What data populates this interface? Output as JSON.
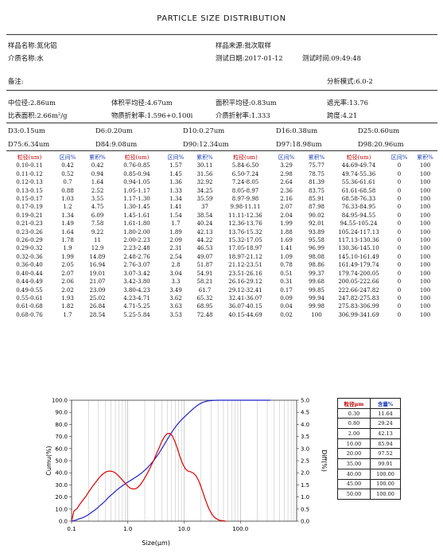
{
  "title": "PARTICLE SIZE DISTRIBUTION",
  "header": {
    "sample_name": "样品名称:氮化铝",
    "sample_source": "样品来源:批次取样",
    "medium": "介质名称:水",
    "test_date": "测试日期:2017-01-12",
    "test_time": "测试时间:09:49:48",
    "remark": "备注:",
    "analysis_mode": "分析模式:6.0-2"
  },
  "summary": {
    "median": "中位径:2.86um",
    "vol_mean": "体积平均径:4.67um",
    "area_mean": "面积平均径:0.83um",
    "obscuration": "遮光率:13.76",
    "spec_area": "比表面积:2.66m²/g",
    "refr": "物质折射率:1.596+0.100i",
    "medium_refr": "介质折射率:1.333",
    "span": "跨度:4.21"
  },
  "dvalues": {
    "d3": "D3:0.15um",
    "d6": "D6:0.20um",
    "d10": "D10:0.27um",
    "d16": "D16:0.38um",
    "d25": "D25:0.60um",
    "d75": "D75:6.34um",
    "d84": "D84:9.08um",
    "d90": "D90:12.34um",
    "d97": "D97:18.98um",
    "d98": "D98:20.96um"
  },
  "table": {
    "headers": [
      "粒径(um)",
      "区间%",
      "累积%",
      "粒径(um)",
      "区间%",
      "累积%",
      "粒径(um)",
      "区间%",
      "累积%",
      "粒径(um)",
      "区间%",
      "累积%"
    ],
    "rows": [
      [
        "0.10-0.11",
        "0.42",
        "0.42",
        "0.76-0.85",
        "1.57",
        "30.11",
        "5.84-6.50",
        "3.29",
        "75.77",
        "44.69-49.74",
        "0",
        "100"
      ],
      [
        "0.11-0.12",
        "0.52",
        "0.94",
        "0.85-0.94",
        "1.45",
        "31.56",
        "6.50-7.24",
        "2.98",
        "78.75",
        "49.74-55.36",
        "0",
        "100"
      ],
      [
        "0.12-0.13",
        "0.7",
        "1.64",
        "0.94-1.05",
        "1.36",
        "32.92",
        "7.24-8.05",
        "2.64",
        "81.39",
        "55.36-61.61",
        "0",
        "100"
      ],
      [
        "0.13-0.15",
        "0.88",
        "2.52",
        "1.05-1.17",
        "1.33",
        "34.25",
        "8.05-8.97",
        "2.36",
        "83.75",
        "61.61-68.58",
        "0",
        "100"
      ],
      [
        "0.15-0.17",
        "1.03",
        "3.55",
        "1.17-1.30",
        "1.34",
        "35.59",
        "8.97-9.98",
        "2.16",
        "85.91",
        "68.58-76.33",
        "0",
        "100"
      ],
      [
        "0.17-0.19",
        "1.2",
        "4.75",
        "1.30-1.45",
        "1.41",
        "37",
        "9.98-11.11",
        "2.07",
        "87.98",
        "76.33-84.95",
        "0",
        "100"
      ],
      [
        "0.19-0.21",
        "1.34",
        "6.09",
        "1.45-1.61",
        "1.54",
        "38.54",
        "11.11-12.36",
        "2.04",
        "90.02",
        "84.95-94.55",
        "0",
        "100"
      ],
      [
        "0.21-0.23",
        "1.49",
        "7.58",
        "1.61-1.80",
        "1.7",
        "40.24",
        "12.36-13.76",
        "1.99",
        "92.01",
        "94.55-105.24",
        "0",
        "100"
      ],
      [
        "0.23-0.26",
        "1.64",
        "9.22",
        "1.80-2.00",
        "1.89",
        "42.13",
        "13.76-15.32",
        "1.88",
        "93.89",
        "105.24-117.13",
        "0",
        "100"
      ],
      [
        "0.26-0.29",
        "1.78",
        "11",
        "2.00-2.23",
        "2.09",
        "44.22",
        "15.32-17.05",
        "1.69",
        "95.58",
        "117.13-130.36",
        "0",
        "100"
      ],
      [
        "0.29-0.32",
        "1.9",
        "12.9",
        "2.23-2.48",
        "2.31",
        "46.53",
        "17.05-18.97",
        "1.41",
        "96.99",
        "130.36-145.10",
        "0",
        "100"
      ],
      [
        "0.32-0.36",
        "1.99",
        "14.89",
        "2.48-2.76",
        "2.54",
        "49.07",
        "18.97-21.12",
        "1.09",
        "98.08",
        "145.10-161.49",
        "0",
        "100"
      ],
      [
        "0.36-0.40",
        "2.05",
        "16.94",
        "2.76-3.07",
        "2.8",
        "51.87",
        "21.12-23.51",
        "0.78",
        "98.86",
        "161.49-179.74",
        "0",
        "100"
      ],
      [
        "0.40-0.44",
        "2.07",
        "19.01",
        "3.07-3.42",
        "3.04",
        "54.91",
        "23.51-26.16",
        "0.51",
        "99.37",
        "179.74-200.05",
        "0",
        "100"
      ],
      [
        "0.44-0.49",
        "2.06",
        "21.07",
        "3.42-3.80",
        "3.3",
        "58.21",
        "26.16-29.12",
        "0.31",
        "99.68",
        "200.05-222.66",
        "0",
        "100"
      ],
      [
        "0.49-0.55",
        "2.02",
        "23.09",
        "3.80-4.23",
        "3.49",
        "61.7",
        "29.12-32.41",
        "0.17",
        "99.85",
        "222.66-247.82",
        "0",
        "100"
      ],
      [
        "0.55-0.61",
        "1.93",
        "25.02",
        "4.23-4.71",
        "3.62",
        "65.32",
        "32.41-36.07",
        "0.09",
        "99.94",
        "247.82-275.83",
        "0",
        "100"
      ],
      [
        "0.61-0.68",
        "1.82",
        "26.84",
        "4.71-5.25",
        "3.63",
        "68.95",
        "36.07-40.15",
        "0.04",
        "99.98",
        "275.83-306.99",
        "0",
        "100"
      ],
      [
        "0.68-0.76",
        "1.7",
        "28.54",
        "5.25-5.84",
        "3.53",
        "72.48",
        "40.15-44.69",
        "0.02",
        "100",
        "306.99-341.69",
        "0",
        "100"
      ]
    ]
  },
  "legend_table": {
    "headers": [
      "粒径μm",
      "含量%"
    ],
    "rows": [
      [
        "0.30",
        "11.64"
      ],
      [
        "0.80",
        "29.24"
      ],
      [
        "2.00",
        "42.13"
      ],
      [
        "10.00",
        "85.94"
      ],
      [
        "20.00",
        "97.52"
      ],
      [
        "35.00",
        "99.91"
      ],
      [
        "40.00",
        "100.00"
      ],
      [
        "45.00",
        "100.00"
      ],
      [
        "50.00",
        "100.00"
      ]
    ]
  },
  "chart_data": {
    "type": "line",
    "xlabel": "Size(μm)",
    "ylabel": "Cumu(%)",
    "ylabel_right": "Diff(%)",
    "xscale": "log",
    "xlim": [
      0.1,
      1000
    ],
    "ylim": [
      0,
      100
    ],
    "ylim_right": [
      0,
      5
    ],
    "x_ticks": [
      "0.1",
      "1.0",
      "10.0",
      "100.0"
    ],
    "y_ticks": [
      "0.0",
      "10.0",
      "20.0",
      "30.0",
      "40.0",
      "50.0",
      "60.0",
      "70.0",
      "80.0",
      "90.0",
      "100.0"
    ],
    "y_ticks_right": [
      "0.0",
      "0.5",
      "1.0",
      "1.5",
      "2.0",
      "2.5",
      "3.0",
      "3.5",
      "4.0",
      "4.5",
      "5.0"
    ],
    "grid": true,
    "colors": {
      "cumu": "#2222cc",
      "diff": "#dd0000"
    },
    "series": [
      {
        "axis": "left",
        "x": [
          0.1,
          0.11,
          0.12,
          0.13,
          0.15,
          0.17,
          0.19,
          0.21,
          0.23,
          0.26,
          0.29,
          0.32,
          0.36,
          0.4,
          0.44,
          0.49,
          0.55,
          0.61,
          0.68,
          0.76,
          0.85,
          0.94,
          1.05,
          1.17,
          1.3,
          1.45,
          1.61,
          1.8,
          2.0,
          2.23,
          2.48,
          2.76,
          3.07,
          3.42,
          3.8,
          4.23,
          4.71,
          5.25,
          5.84,
          6.5,
          7.24,
          8.05,
          8.97,
          9.98,
          11.11,
          12.36,
          13.76,
          15.32,
          17.05,
          18.97,
          21.12,
          23.51,
          26.16,
          29.12,
          32.41,
          36.07,
          40.15,
          44.69,
          49.74,
          100,
          200,
          341.69
        ],
        "y": [
          0,
          0.42,
          0.94,
          1.64,
          2.52,
          3.55,
          4.75,
          6.09,
          7.58,
          9.22,
          11,
          12.9,
          14.89,
          16.94,
          19.01,
          21.07,
          23.09,
          25.02,
          26.84,
          28.54,
          30.11,
          31.56,
          32.92,
          34.25,
          35.59,
          37,
          38.54,
          40.24,
          42.13,
          44.22,
          46.53,
          49.07,
          51.87,
          54.91,
          58.21,
          61.7,
          65.32,
          68.95,
          72.48,
          75.77,
          78.75,
          81.39,
          83.75,
          85.91,
          87.98,
          90.02,
          92.01,
          93.89,
          95.58,
          96.99,
          98.08,
          98.86,
          99.37,
          99.68,
          99.85,
          99.94,
          99.98,
          100,
          100,
          100,
          100,
          100
        ]
      },
      {
        "axis": "right",
        "x": [
          0.1,
          0.11,
          0.125,
          0.14,
          0.16,
          0.18,
          0.2,
          0.22,
          0.245,
          0.275,
          0.305,
          0.34,
          0.38,
          0.42,
          0.465,
          0.52,
          0.58,
          0.645,
          0.72,
          0.8,
          0.895,
          0.995,
          1.11,
          1.235,
          1.375,
          1.53,
          1.705,
          1.9,
          2.115,
          2.355,
          2.62,
          2.915,
          3.245,
          3.61,
          4.015,
          4.47,
          4.98,
          5.545,
          6.17,
          6.87,
          7.645,
          8.51,
          9.475,
          10.545,
          11.735,
          13.06,
          14.54,
          16.185,
          18.01,
          20.045,
          22.315,
          24.835,
          27.64,
          30.765,
          34.24,
          38.11,
          42.42,
          47.2,
          55
        ],
        "y": [
          0,
          0.42,
          0.52,
          0.7,
          0.88,
          1.03,
          1.2,
          1.34,
          1.49,
          1.64,
          1.78,
          1.9,
          1.99,
          2.05,
          2.07,
          2.06,
          2.02,
          1.93,
          1.82,
          1.7,
          1.57,
          1.45,
          1.36,
          1.33,
          1.34,
          1.41,
          1.54,
          1.7,
          1.89,
          2.09,
          2.31,
          2.54,
          2.8,
          3.04,
          3.3,
          3.49,
          3.62,
          3.63,
          3.53,
          3.29,
          2.98,
          2.64,
          2.36,
          2.16,
          2.07,
          2.04,
          1.99,
          1.88,
          1.69,
          1.41,
          1.09,
          0.78,
          0.51,
          0.31,
          0.17,
          0.09,
          0.04,
          0.02,
          0
        ]
      }
    ]
  }
}
